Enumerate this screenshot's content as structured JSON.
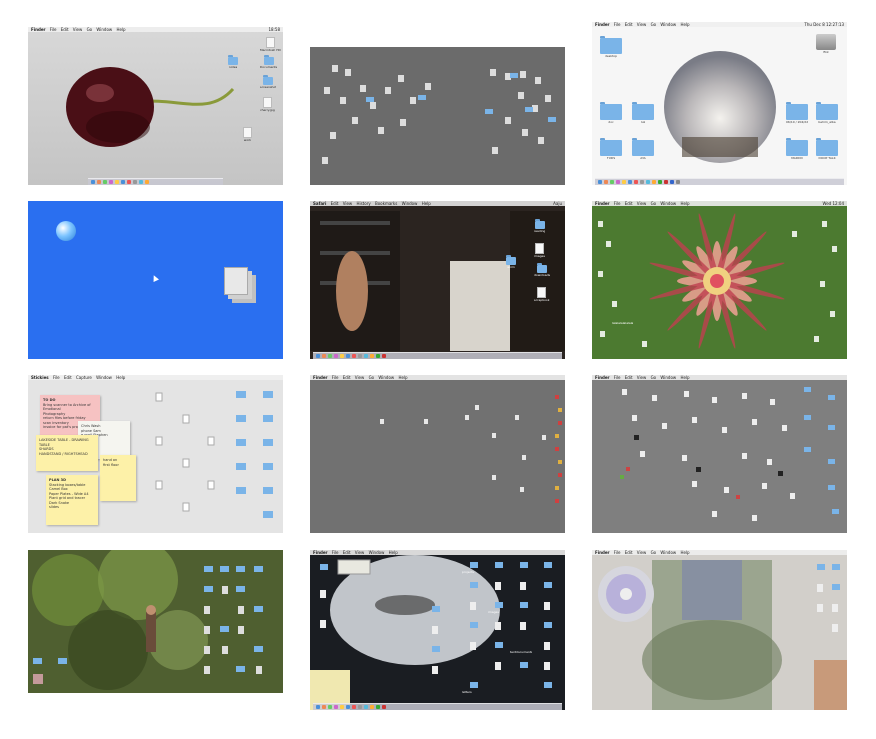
{
  "tiles": [
    {
      "id": "cherry-desktop",
      "menu": [
        "Finder",
        "File",
        "Edit",
        "View",
        "Go",
        "Window",
        "Help"
      ],
      "clock": "18:58",
      "labels": [
        "Macintosh HD",
        "Documents",
        "screenshot",
        "cherry.jpg",
        "notes",
        "work"
      ]
    },
    {
      "id": "grey-scattered-desktop",
      "menu": [],
      "clock": ""
    },
    {
      "id": "sky-circle-desktop",
      "menu": [
        "Finder",
        "File",
        "Edit",
        "View",
        "Go",
        "Window",
        "Help"
      ],
      "clock": "Thu Dec 8 12:27:13",
      "folders": [
        "desktop",
        "doc",
        "tuk",
        "06/10 / 204/22",
        "behim_alba",
        "TUDS",
        "AYA",
        "MADDD",
        "DOOP TALK"
      ],
      "disk": "fikk"
    },
    {
      "id": "blue-desktop",
      "menu": [],
      "clock": ""
    },
    {
      "id": "photo-man-desktop",
      "menu": [
        "Safari",
        "Edit",
        "View",
        "History",
        "Bookmarks",
        "Window",
        "Help"
      ],
      "clock": "Aaju",
      "labels": [
        "reading",
        "images",
        "downloads",
        "scrapbook",
        "anim"
      ]
    },
    {
      "id": "mandala-desktop",
      "menu": [
        "Finder",
        "File",
        "Edit",
        "View",
        "Go",
        "Window",
        "Help"
      ],
      "clock": "Wed 12:04",
      "labels": [
        "lalalalalalalala"
      ]
    },
    {
      "id": "stickies-desktop",
      "menu": [
        "Stickies",
        "File",
        "Edit",
        "Capture",
        "Window",
        "Help"
      ],
      "clock": "",
      "stickies": [
        [
          "TO DO",
          "Bring scanner to Archive of Emotional",
          "Photography",
          "return files before friday",
          "scan inventory",
          "invoice for pat's project"
        ],
        [
          "Chris Wash",
          "phone Sam",
          "e-mail Stephen"
        ],
        [
          "LAKESIDE TABLE - DRAWING TABLE",
          "",
          "SHARDS",
          "",
          "HANDSTAND / RIGHTSHEAD"
        ],
        [
          "hand on",
          "first floor"
        ],
        [
          "PLAN 3D",
          "Stacking boxes/table",
          "Camel Box",
          "Paper Plates - Wide A4",
          "Plant grid and tracer",
          "Dark Snake",
          "slides",
          "",
          "Lets be good",
          "",
          "Window boxes"
        ]
      ]
    },
    {
      "id": "grey-sparse-desktop",
      "menu": [
        "Finder",
        "File",
        "Edit",
        "View",
        "Go",
        "Window",
        "Help"
      ],
      "clock": ""
    },
    {
      "id": "grey-files-desktop",
      "menu": [
        "Finder",
        "File",
        "Edit",
        "View",
        "Go",
        "Window",
        "Help"
      ],
      "clock": ""
    },
    {
      "id": "forest-desktop",
      "menu": [],
      "clock": ""
    },
    {
      "id": "portrait-desktop",
      "menu": [
        "Finder",
        "File",
        "Edit",
        "View",
        "Window",
        "Help"
      ],
      "clock": "",
      "labels": [
        "projects",
        "images",
        "textdocuments",
        "letters",
        "archive",
        "documents"
      ]
    },
    {
      "id": "cd-collage-desktop",
      "menu": [
        "Finder",
        "File",
        "Edit",
        "View",
        "Go",
        "Window",
        "Help"
      ],
      "clock": ""
    }
  ]
}
